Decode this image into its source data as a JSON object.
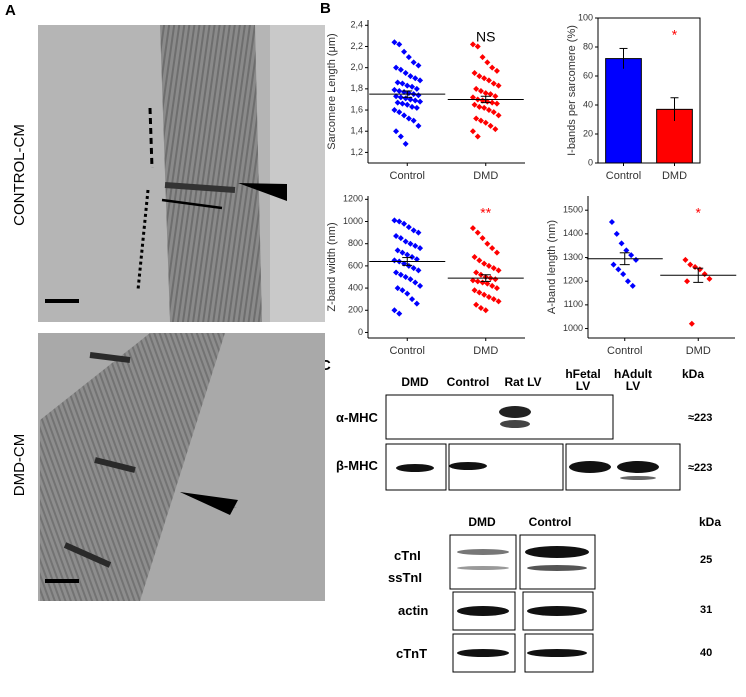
{
  "panel_labels": [
    "A",
    "B",
    "C"
  ],
  "micrographs": [
    {
      "label": "CONTROL-CM"
    },
    {
      "label": "DMD-CM"
    }
  ],
  "chart_data": [
    {
      "type": "strip",
      "ylabel": "Sarcomere Length (μm)",
      "categories": [
        "Control",
        "DMD"
      ],
      "annotation": "NS",
      "annotation_color": "#000000",
      "ylim": [
        1.1,
        2.45
      ],
      "yticks": [
        {
          "value": 1.2,
          "label": "1,2"
        },
        {
          "value": 1.4,
          "label": "1,4"
        },
        {
          "value": 1.6,
          "label": "1,6"
        },
        {
          "value": 1.8,
          "label": "1,8"
        },
        {
          "value": 2.0,
          "label": "2,0"
        },
        {
          "value": 2.2,
          "label": "2,2"
        },
        {
          "value": 2.4,
          "label": "2,4"
        }
      ],
      "series": [
        {
          "color": "#0000ff",
          "mean": 1.75,
          "sem": 0.03,
          "values": [
            2.24,
            2.22,
            2.15,
            2.1,
            2.05,
            2.02,
            2.0,
            1.98,
            1.95,
            1.92,
            1.9,
            1.88,
            1.86,
            1.85,
            1.83,
            1.82,
            1.8,
            1.79,
            1.78,
            1.77,
            1.76,
            1.75,
            1.74,
            1.73,
            1.72,
            1.71,
            1.7,
            1.69,
            1.68,
            1.67,
            1.66,
            1.65,
            1.63,
            1.62,
            1.6,
            1.58,
            1.55,
            1.52,
            1.5,
            1.45,
            1.4,
            1.35,
            1.28
          ]
        },
        {
          "color": "#ff0000",
          "mean": 1.7,
          "sem": 0.03,
          "values": [
            2.22,
            2.2,
            2.1,
            2.05,
            2.0,
            1.97,
            1.95,
            1.92,
            1.9,
            1.88,
            1.85,
            1.83,
            1.8,
            1.78,
            1.76,
            1.75,
            1.73,
            1.72,
            1.7,
            1.69,
            1.68,
            1.67,
            1.66,
            1.65,
            1.63,
            1.62,
            1.6,
            1.58,
            1.55,
            1.52,
            1.5,
            1.48,
            1.45,
            1.42,
            1.4,
            1.35
          ]
        }
      ]
    },
    {
      "type": "bar",
      "ylabel": "I-bands per sarcomere (%)",
      "categories": [
        "Control",
        "DMD"
      ],
      "annotation": "*",
      "annotation_color": "#ff0000",
      "values": [
        72,
        37
      ],
      "errors": [
        7,
        8
      ],
      "colors": [
        "#0000ff",
        "#ff0000"
      ],
      "ylim": [
        0,
        100
      ],
      "yticks": [
        0,
        20,
        40,
        60,
        80,
        100
      ]
    },
    {
      "type": "strip",
      "ylabel": "Z-band width (nm)",
      "categories": [
        "Control",
        "DMD"
      ],
      "annotation": "**",
      "annotation_color": "#ff0000",
      "ylim": [
        -50,
        1230
      ],
      "yticks": [
        0,
        200,
        400,
        600,
        800,
        1000,
        1200
      ],
      "series": [
        {
          "color": "#0000ff",
          "mean": 640,
          "sem": 35,
          "values": [
            1010,
            1000,
            980,
            950,
            920,
            900,
            870,
            850,
            820,
            800,
            780,
            760,
            740,
            720,
            700,
            680,
            660,
            650,
            640,
            620,
            600,
            580,
            560,
            540,
            520,
            500,
            480,
            450,
            420,
            400,
            380,
            350,
            300,
            260,
            200,
            170
          ]
        },
        {
          "color": "#ff0000",
          "mean": 490,
          "sem": 30,
          "values": [
            940,
            900,
            850,
            800,
            760,
            720,
            680,
            650,
            620,
            600,
            580,
            560,
            540,
            520,
            500,
            490,
            480,
            470,
            460,
            450,
            440,
            420,
            400,
            380,
            360,
            340,
            320,
            300,
            280,
            250,
            220,
            200
          ]
        }
      ]
    },
    {
      "type": "strip",
      "ylabel": "A-band length (nm)",
      "categories": [
        "Control",
        "DMD"
      ],
      "annotation": "*",
      "annotation_color": "#ff0000",
      "ylim": [
        960,
        1560
      ],
      "yticks": [
        1000,
        1100,
        1200,
        1300,
        1400,
        1500
      ],
      "series": [
        {
          "color": "#0000ff",
          "mean": 1295,
          "sem": 25,
          "values": [
            1450,
            1400,
            1360,
            1330,
            1310,
            1290,
            1270,
            1250,
            1230,
            1200,
            1180
          ]
        },
        {
          "color": "#ff0000",
          "mean": 1225,
          "sem": 30,
          "values": [
            1290,
            1270,
            1260,
            1250,
            1230,
            1210,
            1200,
            1020
          ]
        }
      ]
    }
  ],
  "western_blot_1": {
    "lanes": [
      "DMD",
      "Control",
      "Rat LV",
      "hFetal LV",
      "hAdult LV"
    ],
    "kda_header": "kDa",
    "rows": [
      {
        "label": "α-MHC",
        "kda": "≈223"
      },
      {
        "label": "β-MHC",
        "kda": "≈223"
      }
    ]
  },
  "western_blot_2": {
    "lanes": [
      "DMD",
      "Control"
    ],
    "kda_header": "kDa",
    "rows": [
      {
        "labels": [
          "cTnI",
          "ssTnI"
        ],
        "kda": "25"
      },
      {
        "labels": [
          "actin"
        ],
        "kda": "31"
      },
      {
        "labels": [
          "cTnT"
        ],
        "kda": "40"
      }
    ]
  }
}
